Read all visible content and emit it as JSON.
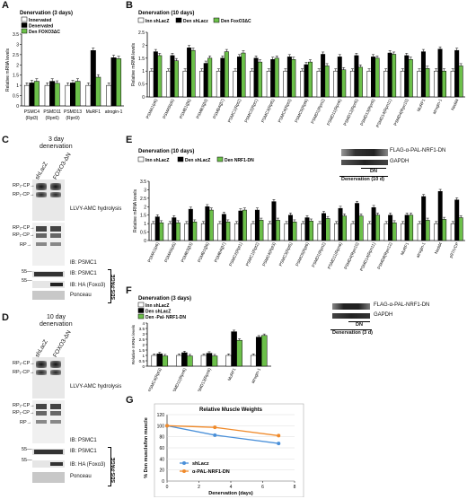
{
  "panels": {
    "A": {
      "label": "A",
      "title": "Denervation (3 days)",
      "legend": [
        "Innervated",
        "Denervated",
        "Den FOXO3ΔC"
      ],
      "ylabel": "Relative mRNA levels"
    },
    "B": {
      "label": "B",
      "title": "Denervation (10 days)",
      "legend": [
        "Inn shLacZ",
        "Den shLacz",
        "Den FoxO3ΔC"
      ],
      "ylabel": "Relative mRNA levels"
    },
    "C": {
      "label": "C",
      "title_line1": "3 day",
      "title_line2": "denervation",
      "lanes": [
        "shLacZ",
        "FOXO3-ΔN"
      ],
      "side_labels": [
        "RP₂-CP→",
        "RP₁-CP→",
        "RP₁-CP→",
        "RP₂-CP→",
        "RP→"
      ],
      "gel_labels": [
        "LLVY-AMC hydrolysis",
        "IB: PSMC1",
        "IB: PSMC1",
        "IB: HA (Foxo3)",
        "Ponceau"
      ],
      "mw": [
        "55—",
        "55—"
      ],
      "sds": "SDS-PAGE"
    },
    "D": {
      "label": "D",
      "title_line1": "10 day",
      "title_line2": "denervation",
      "lanes": [
        "shLacZ",
        "FOXO3-ΔN"
      ],
      "gel_labels": [
        "LLVY-AMC hydrolysis",
        "IB: PSMC1",
        "IB: PSMC1",
        "IB: HA (Foxo3)",
        "Ponceau"
      ],
      "mw": [
        "55—",
        "55—"
      ],
      "sds": "SDS-PAGE"
    },
    "E": {
      "label": "E",
      "title": "Denervation (10 days)",
      "legend": [
        "Inn shLacZ",
        "Den shLacZ",
        "Den NRF1-DN"
      ],
      "ylabel": "Relative mRNA levels",
      "blot_labels": [
        "FLAG-α-PAL-NRF1-DN",
        "GAPDH"
      ],
      "blot_header": "DN",
      "blot_footer": "Denervation (10 d)"
    },
    "F": {
      "label": "F",
      "title": "Denervation (3 days)",
      "legend": [
        "Inn shLacZ",
        "Den shLacZ",
        "Den -Pal- NRF1-DN"
      ],
      "ylabel": "Relative mRNA levels",
      "blot_labels": [
        "FLAG-α-PAL-NRF1-DN",
        "GAPDH"
      ],
      "blot_header": "DN",
      "blot_footer": "Denervation (3 d)"
    },
    "G": {
      "label": "G",
      "title": "Relative Muscle Weights"
    }
  },
  "chart_data": [
    {
      "id": "A",
      "type": "bar",
      "categories": [
        "PSMC4 (Rpt3)",
        "PSMD11 (Rpn6)",
        "PSMD13 (Rpn9)",
        "MuRF1",
        "atrogin-1"
      ],
      "series": [
        {
          "name": "Innervated",
          "values": [
            1.0,
            1.0,
            1.0,
            1.0,
            1.0
          ]
        },
        {
          "name": "Denervated",
          "values": [
            1.12,
            1.2,
            1.12,
            2.7,
            2.35
          ]
        },
        {
          "name": "Den FOXO3ΔC",
          "values": [
            1.2,
            1.1,
            1.2,
            1.4,
            2.3
          ]
        }
      ],
      "ylim": [
        0,
        3.5
      ],
      "yticks": [
        0,
        0.5,
        1,
        1.5,
        2,
        2.5,
        3,
        3.5
      ],
      "colors": [
        "#ffffff",
        "#000000",
        "#6cc04a"
      ]
    },
    {
      "id": "B",
      "type": "bar",
      "categories": [
        "PSMA1(α6)",
        "PSMA5(α5)",
        "PSMB1(β6)",
        "PSMB3(β3)",
        "PSMB4(β7)",
        "PSMC1(Rpt2)",
        "PSMC2(Rpt1)",
        "PSMC3(Rpt5)",
        "PSMC4(Rpt3)",
        "PSMC5(Rpt6)",
        "PSMD1(Rpn2)",
        "PSMD11(Rpn6)",
        "PSMD12(Rpn5)",
        "PSMD13(Rpn9)",
        "PSMD14(Rpn11)",
        "PSMD4(Rpn10)",
        "MuRF1",
        "atrogin-1",
        "Nedd4"
      ],
      "series": [
        {
          "name": "Inn shLacZ",
          "values": [
            1,
            1,
            1,
            1,
            1,
            1,
            1,
            1,
            1,
            1,
            1,
            1,
            1,
            1,
            1,
            1,
            1,
            1,
            1
          ]
        },
        {
          "name": "Den shLacz",
          "values": [
            1.75,
            1.6,
            1.9,
            1.3,
            1.5,
            1.55,
            1.5,
            1.45,
            1.55,
            1.25,
            1.65,
            1.55,
            1.6,
            1.55,
            1.7,
            1.6,
            1.75,
            1.85,
            1.8
          ]
        },
        {
          "name": "Den FoxO3ΔC",
          "values": [
            1.6,
            1.4,
            1.8,
            1.5,
            1.75,
            1.7,
            1.35,
            1.5,
            1.45,
            1.35,
            1.2,
            1.05,
            1.15,
            1.5,
            1.65,
            1.45,
            1.1,
            1.0,
            1.2
          ]
        }
      ],
      "ylim": [
        0,
        2.5
      ],
      "yticks": [
        0,
        0.5,
        1,
        1.5,
        2,
        2.5
      ],
      "colors": [
        "#ffffff",
        "#000000",
        "#6cc04a"
      ]
    },
    {
      "id": "E",
      "type": "bar",
      "categories": [
        "PSMA1(α6)",
        "PSMA5(α5)",
        "PSMB3(β3)",
        "PSMB1(β6)",
        "PSMB4(β7)",
        "PSMC2(Rpt1)",
        "PSMC1(Rpt2)",
        "PSMC4(Rpt3)",
        "PSMC3(Rpt5)",
        "PSMC5(Rpt6)",
        "PSMD1(Rpn2)",
        "PSMD11(Rpn6)",
        "PSMD4(Rpn10)",
        "PSMD14(Rpn11)",
        "PSMD8(Rpn12)",
        "MuRF1",
        "atrogin-1",
        "Nedd4",
        "p97/VCP"
      ],
      "series": [
        {
          "name": "Inn shLacZ",
          "values": [
            1,
            1,
            1,
            1,
            1,
            1,
            1,
            1,
            1,
            1,
            1,
            1,
            1,
            1,
            1,
            1,
            1,
            1,
            1
          ]
        },
        {
          "name": "Den shLacZ",
          "values": [
            1.4,
            1.35,
            1.85,
            2.0,
            1.55,
            1.75,
            1.8,
            2.3,
            1.5,
            1.35,
            1.6,
            1.9,
            2.2,
            1.95,
            1.5,
            1.5,
            2.6,
            2.9,
            2.4
          ]
        },
        {
          "name": "Den NRF1-DN",
          "values": [
            1.05,
            1.05,
            1.1,
            1.8,
            1.1,
            1.8,
            1.2,
            1.2,
            1.1,
            1.15,
            1.3,
            1.45,
            1.45,
            1.5,
            1.05,
            1.5,
            1.2,
            1.25,
            1.35
          ]
        }
      ],
      "ylim": [
        0,
        3.5
      ],
      "yticks": [
        0,
        0.5,
        1,
        1.5,
        2,
        2.5,
        3,
        3.5
      ],
      "colors": [
        "#ffffff",
        "#000000",
        "#6cc04a"
      ]
    },
    {
      "id": "F",
      "type": "bar",
      "categories": [
        "PSMC4(Rpt3)",
        "PSMD11(Rpn6)",
        "PSMD13(Rpn9)",
        "MuRF1",
        "atrogin-1"
      ],
      "series": [
        {
          "name": "Inn shLacZ",
          "values": [
            1,
            1,
            1,
            1,
            1
          ]
        },
        {
          "name": "Den shLacZ",
          "values": [
            1.15,
            1.25,
            1.2,
            3.2,
            2.7
          ]
        },
        {
          "name": "Den -Pal- NRF1-DN",
          "values": [
            0.95,
            0.95,
            0.95,
            2.4,
            2.85
          ]
        }
      ],
      "ylim": [
        0,
        4
      ],
      "yticks": [
        0,
        0.5,
        1,
        1.5,
        2,
        2.5,
        3,
        3.5,
        4
      ],
      "colors": [
        "#ffffff",
        "#000000",
        "#6cc04a"
      ]
    },
    {
      "id": "G",
      "type": "line",
      "title": "Relative Muscle Weights",
      "xlabel": "Denervation (days)",
      "ylabel": "% Den muscle/Inn muscle",
      "x": [
        0,
        3,
        7
      ],
      "series": [
        {
          "name": "shLacz",
          "values": [
            100,
            83,
            68
          ],
          "color": "#4a90d9"
        },
        {
          "name": "α-PAL-NRF1-DN",
          "values": [
            100,
            97,
            82
          ],
          "color": "#f08a2a"
        }
      ],
      "xlim": [
        0,
        8
      ],
      "ylim": [
        0,
        120
      ],
      "xticks": [
        0,
        2,
        4,
        6,
        8
      ],
      "yticks": [
        0,
        20,
        40,
        60,
        80,
        100,
        120
      ]
    }
  ]
}
